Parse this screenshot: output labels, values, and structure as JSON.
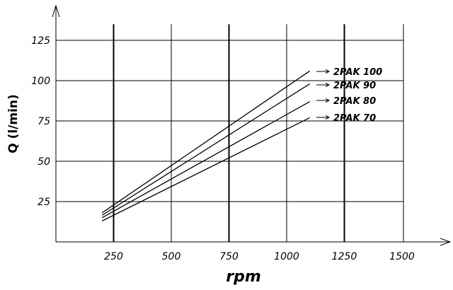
{
  "chart_data": {
    "type": "line",
    "xlabel": "rpm",
    "ylabel": "Q (l/min)",
    "xlim": [
      0,
      1600
    ],
    "ylim": [
      0,
      135
    ],
    "x_ticks": [
      250,
      500,
      750,
      1000,
      1250,
      1500
    ],
    "y_ticks": [
      25,
      50,
      75,
      100,
      125
    ],
    "grid": true,
    "legend_placement": "right, next to line ends",
    "series": [
      {
        "name": "2PAK 100",
        "x": [
          200,
          1100
        ],
        "y": [
          18,
          106
        ]
      },
      {
        "name": "2PAK 90",
        "x": [
          200,
          1100
        ],
        "y": [
          16.5,
          98
        ]
      },
      {
        "name": "2PAK 80",
        "x": [
          200,
          1100
        ],
        "y": [
          15,
          87
        ]
      },
      {
        "name": "2PAK 70",
        "x": [
          200,
          1100
        ],
        "y": [
          13,
          77
        ]
      }
    ]
  }
}
